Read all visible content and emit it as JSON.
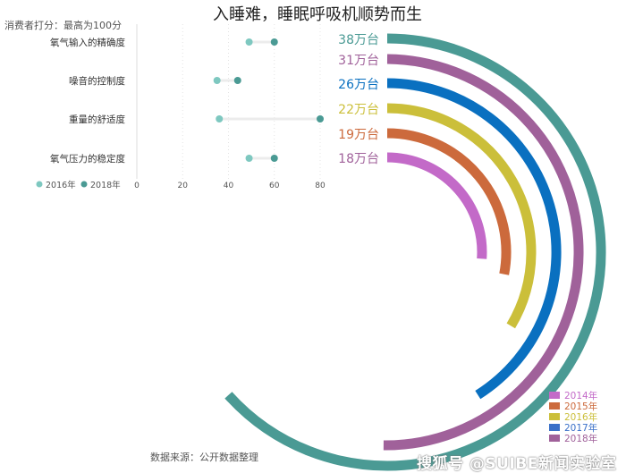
{
  "title": "入睡难，睡眠呼吸机顺势而生",
  "source": "数据来源：公开数据整理",
  "watermark": "搜狐号 @SUIBE新闻实验室",
  "chart_data": [
    {
      "type": "scatter",
      "subtype": "dumbbell",
      "subtitle": "消费者打分：最高为100分",
      "categories": [
        "氧气输入的精确度",
        "噪音的控制度",
        "重量的舒适度",
        "氧气压力的稳定度"
      ],
      "series": [
        {
          "name": "2016年",
          "color": "#7ec8c0",
          "values": [
            49,
            35,
            36,
            49
          ]
        },
        {
          "name": "2018年",
          "color": "#4a9a94",
          "values": [
            60,
            44,
            80,
            60
          ]
        }
      ],
      "xticks": [
        "0",
        "20",
        "40",
        "60",
        "80"
      ],
      "xlim": [
        0,
        80
      ],
      "grid": "vertical dotted",
      "legend": "bottom-left"
    },
    {
      "type": "bar",
      "subtype": "radial",
      "unit": "万台",
      "items": [
        {
          "label": "38万台",
          "value": 38,
          "color": "#4a9a94",
          "label_color": "#4a9a94"
        },
        {
          "label": "31万台",
          "value": 31,
          "color": "#a0619a",
          "label_color": "#a0619a"
        },
        {
          "label": "26万台",
          "value": 26,
          "color": "#0a70c0",
          "label_color": "#0a70c0"
        },
        {
          "label": "22万台",
          "value": 22,
          "color": "#cbbf3a",
          "label_color": "#cbbf3a"
        },
        {
          "label": "19万台",
          "value": 19,
          "color": "#cc6a3c",
          "label_color": "#cc6a3c"
        },
        {
          "label": "18万台",
          "value": 18,
          "color": "#c36ac8",
          "label_color": "#a0619a"
        }
      ],
      "legend": {
        "position": "bottom-right",
        "entries": [
          {
            "name": "2014年",
            "color": "#c36ac8"
          },
          {
            "name": "2015年",
            "color": "#cc6a3c"
          },
          {
            "name": "2016年",
            "color": "#cbbf3a"
          },
          {
            "name": "2017年",
            "color": "#3a70c8"
          },
          {
            "name": "2018年",
            "color": "#a0619a"
          }
        ]
      }
    }
  ]
}
